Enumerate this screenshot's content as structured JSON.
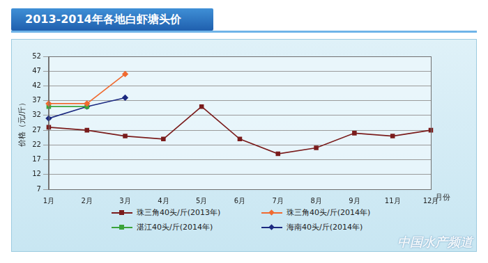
{
  "chart_data": {
    "type": "line",
    "title": "2013-2014年各地白虾塘头价",
    "y_label": "价格（元/斤）",
    "x_label": "月份",
    "watermark": "中国水产频道",
    "categories": [
      "1月",
      "2月",
      "3月",
      "4月",
      "5月",
      "6月",
      "7月",
      "8月",
      "9月",
      "11月",
      "12月"
    ],
    "ylim": [
      7,
      52
    ],
    "yticks": [
      7,
      12,
      17,
      22,
      27,
      32,
      37,
      42,
      47,
      52
    ],
    "grid": true,
    "legend": "bottom",
    "series": [
      {
        "name": "珠三角40头/斤(2013年)",
        "color": "#7a1c1c",
        "marker": "square",
        "values": [
          28,
          27,
          25,
          24,
          35,
          24,
          19,
          21,
          26,
          25,
          27
        ]
      },
      {
        "name": "珠三角40头/斤(2014年)",
        "color": "#f06a30",
        "marker": "diamond",
        "values": [
          36,
          36,
          46,
          null,
          null,
          null,
          null,
          null,
          null,
          null,
          null
        ]
      },
      {
        "name": "湛江40头/斤(2014年)",
        "color": "#3aa33a",
        "marker": "square",
        "values": [
          35,
          35,
          null,
          null,
          null,
          null,
          null,
          null,
          null,
          null,
          null
        ]
      },
      {
        "name": "海南40头/斤(2014年)",
        "color": "#1c2a80",
        "marker": "diamond",
        "values": [
          31,
          35,
          38,
          null,
          null,
          null,
          null,
          null,
          null,
          null,
          null
        ]
      }
    ]
  }
}
